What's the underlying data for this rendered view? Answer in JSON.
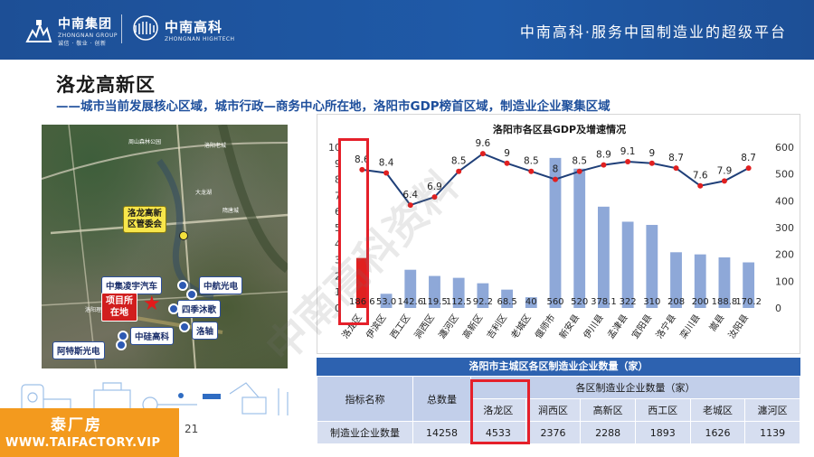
{
  "header": {
    "logo1_cn": "中南集团",
    "logo1_en": "ZHONGNAN GROUP",
    "logo1_tag": "诚信 · 敬业 · 创新",
    "logo2_cn": "中南高科",
    "logo2_en": "ZHONGNAN HIGHTECH",
    "slogan": "中南高科·服务中国制造业的超级平台"
  },
  "title": "洛龙高新区",
  "subtitle": "——城市当前发展核心区域，城市行政—商务中心所在地，洛阳市GDP榜首区域，制造业企业聚集区域",
  "map": {
    "admin_label": "洛龙高新\n区管委会",
    "project_label": "项目所\n在地",
    "companies": [
      "中集凌宇汽车",
      "中航光电",
      "四季沐歌",
      "洛轴",
      "中硅高科",
      "阿特斯光电"
    ],
    "place_names": [
      "周山森林公园",
      "洛阳老城",
      "大龙湖",
      "隋唐城",
      "洛阳理工学院"
    ]
  },
  "chart_data": {
    "type": "bar",
    "title": "洛阳市各区县GDP及增速情况",
    "categories": [
      "洛龙区",
      "伊滨区",
      "西工区",
      "涧西区",
      "瀍河区",
      "高新区",
      "吉利区",
      "老城区",
      "偃师市",
      "新安县",
      "伊川县",
      "孟津县",
      "宜阳县",
      "洛宁县",
      "栾川县",
      "嵩县",
      "汝阳县"
    ],
    "series": [
      {
        "type": "bar",
        "axis": "right",
        "values": [
          186.6,
          53.0,
          142.6,
          119.5,
          112.5,
          92.2,
          68.5,
          40,
          560,
          520,
          378.1,
          322,
          310,
          208,
          200,
          188.8,
          170.2
        ]
      },
      {
        "type": "line",
        "axis": "left",
        "values": [
          8.6,
          8.4,
          6.4,
          6.9,
          8.5,
          9.6,
          9,
          8.5,
          8,
          8.5,
          8.9,
          9.1,
          9,
          8.7,
          7.6,
          7.9,
          8.7
        ]
      }
    ],
    "bar_labels": [
      "186.6",
      "53.0",
      "142.6",
      "119.5",
      "112.5",
      "92.2",
      "68.5",
      "40",
      "560",
      "520",
      "378.1",
      "322",
      "310",
      "208",
      "200",
      "188.8",
      "170.2"
    ],
    "line_labels": [
      "8.6",
      "8.4",
      "6.4",
      "6.9",
      "8.5",
      "9.6",
      "9",
      "8.5",
      "8",
      "8.5",
      "8.9",
      "9.1",
      "9",
      "8.7",
      "7.6",
      "7.9",
      "8.7"
    ],
    "left_axis": {
      "min": 0,
      "max": 10,
      "ticks": [
        "0",
        "1",
        "2",
        "3",
        "4",
        "5",
        "6",
        "7",
        "8",
        "9",
        "10"
      ]
    },
    "right_axis": {
      "min": 0,
      "max": 600,
      "ticks": [
        "0",
        "100",
        "200",
        "300",
        "400",
        "500",
        "600"
      ]
    },
    "highlight_category": "洛龙区",
    "colors": {
      "bar": "#8ea8d8",
      "bar_highlight": "#e02020",
      "line": "#1f3f78",
      "highlight_box": "#e5202a"
    }
  },
  "table": {
    "title": "洛阳市主城区各区制造业企业数量（家）",
    "col_indicator": "指标名称",
    "col_total": "总数量",
    "col_group": "各区制造业企业数量（家）",
    "districts": [
      "洛龙区",
      "涧西区",
      "高新区",
      "西工区",
      "老城区",
      "瀍河区"
    ],
    "row_name": "制造业企业数量",
    "total": "14258",
    "values": [
      "4533",
      "2376",
      "2288",
      "1893",
      "1626",
      "1139"
    ]
  },
  "watermark": "中南高科资料",
  "page_number": "21",
  "banner": {
    "line1": "泰厂房",
    "line2": "WWW.TAIFACTORY.VIP"
  }
}
